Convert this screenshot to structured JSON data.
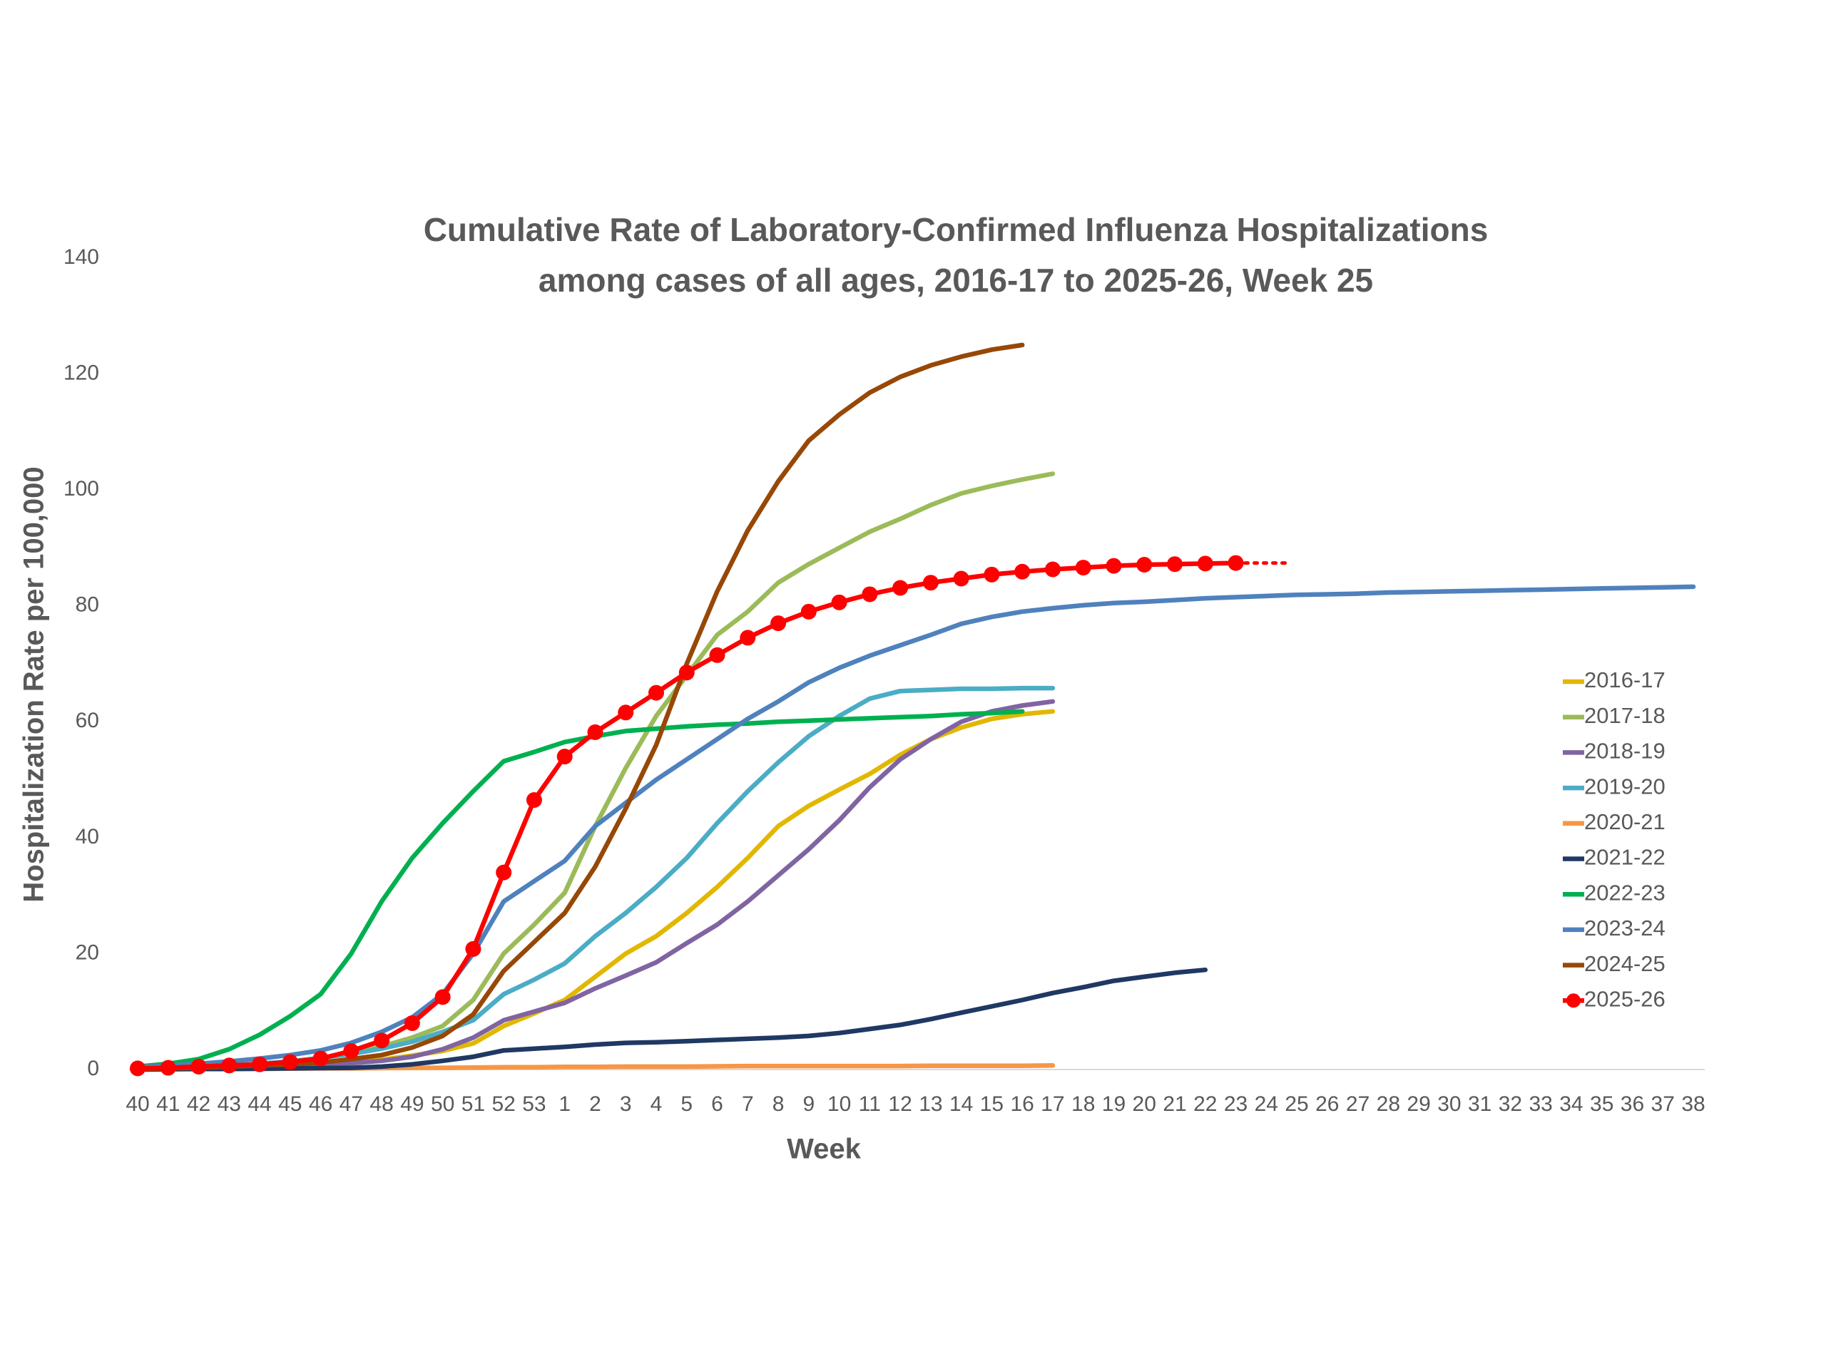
{
  "chart_data": {
    "type": "line",
    "title": [
      "Cumulative Rate of Laboratory-Confirmed Influenza Hospitalizations",
      "among cases of all ages, 2016-17 to 2025-26, Week 25"
    ],
    "x_label": "Week",
    "y_label": "Hospitalization Rate per 100,000",
    "categories": [
      "40",
      "41",
      "42",
      "43",
      "44",
      "45",
      "46",
      "47",
      "48",
      "49",
      "50",
      "51",
      "52",
      "53",
      "1",
      "2",
      "3",
      "4",
      "5",
      "6",
      "7",
      "8",
      "9",
      "10",
      "11",
      "12",
      "13",
      "14",
      "15",
      "16",
      "17",
      "18",
      "19",
      "20",
      "21",
      "22",
      "23",
      "24",
      "25",
      "26",
      "27",
      "28",
      "29",
      "30",
      "31",
      "32",
      "33",
      "34",
      "35",
      "36",
      "37",
      "38"
    ],
    "ylim": [
      0,
      140
    ],
    "yticks": [
      0,
      20,
      40,
      60,
      80,
      100,
      120,
      140
    ],
    "grid": false,
    "legend": "right",
    "series": [
      {
        "name": "2016-17",
        "color": "#e2b700",
        "values": [
          0.1,
          0.2,
          0.3,
          0.4,
          0.5,
          0.7,
          0.9,
          1.2,
          1.7,
          2.4,
          3.2,
          4.5,
          7.5,
          9.7,
          12,
          16,
          20,
          23,
          27,
          31.5,
          36.5,
          42,
          45.5,
          48.3,
          51,
          54.3,
          57,
          59,
          60.5,
          61.3,
          61.8,
          null,
          null,
          null,
          null,
          null,
          null,
          null,
          null,
          null,
          null,
          null,
          null,
          null,
          null,
          null,
          null,
          null,
          null,
          null,
          null,
          null
        ]
      },
      {
        "name": "2017-18",
        "color": "#9bbb59",
        "values": [
          0.2,
          0.3,
          0.5,
          0.7,
          1,
          1.4,
          2,
          2.8,
          4,
          5.5,
          7.5,
          12,
          20,
          25,
          30.5,
          42,
          52,
          61,
          68,
          75,
          79,
          84,
          87.2,
          90,
          92.8,
          95,
          97.4,
          99.4,
          100.7,
          101.8,
          102.8,
          null,
          null,
          null,
          null,
          null,
          null,
          null,
          null,
          null,
          null,
          null,
          null,
          null,
          null,
          null,
          null,
          null,
          null,
          null,
          null,
          null
        ]
      },
      {
        "name": "2018-19",
        "color": "#8064a2",
        "values": [
          0.1,
          0.2,
          0.3,
          0.4,
          0.5,
          0.6,
          0.8,
          1.1,
          1.5,
          2.2,
          3.5,
          5.5,
          8.5,
          10,
          11.5,
          14,
          16.2,
          18.5,
          21.8,
          25,
          29,
          33.5,
          38,
          43,
          48.7,
          53.5,
          57,
          60,
          61.8,
          62.8,
          63.5,
          null,
          null,
          null,
          null,
          null,
          null,
          null,
          null,
          null,
          null,
          null,
          null,
          null,
          null,
          null,
          null,
          null,
          null,
          null,
          null,
          null
        ]
      },
      {
        "name": "2019-20",
        "color": "#4bacc6",
        "values": [
          0.2,
          0.3,
          0.5,
          0.7,
          1,
          1.4,
          2,
          2.7,
          3.6,
          4.8,
          6.5,
          8.5,
          13,
          15.5,
          18.3,
          23,
          27,
          31.5,
          36.5,
          42.5,
          48,
          53,
          57.5,
          61,
          64,
          65.3,
          65.5,
          65.7,
          65.7,
          65.8,
          65.8,
          null,
          null,
          null,
          null,
          null,
          null,
          null,
          null,
          null,
          null,
          null,
          null,
          null,
          null,
          null,
          null,
          null,
          null,
          null,
          null,
          null
        ]
      },
      {
        "name": "2020-21",
        "color": "#f79646",
        "values": [
          0,
          0.05,
          0.1,
          0.1,
          0.1,
          0.15,
          0.2,
          0.2,
          0.25,
          0.3,
          0.3,
          0.35,
          0.4,
          0.4,
          0.45,
          0.45,
          0.5,
          0.5,
          0.5,
          0.55,
          0.6,
          0.6,
          0.6,
          0.6,
          0.6,
          0.6,
          0.65,
          0.65,
          0.65,
          0.65,
          0.7,
          null,
          null,
          null,
          null,
          null,
          null,
          null,
          null,
          null,
          null,
          null,
          null,
          null,
          null,
          null,
          null,
          null,
          null,
          null,
          null,
          null
        ]
      },
      {
        "name": "2021-22",
        "color": "#1f3864",
        "values": [
          0,
          0.05,
          0.1,
          0.1,
          0.15,
          0.2,
          0.25,
          0.3,
          0.5,
          0.9,
          1.5,
          2.2,
          3.3,
          3.6,
          3.9,
          4.3,
          4.6,
          4.7,
          4.9,
          5.1,
          5.3,
          5.5,
          5.8,
          6.3,
          7,
          7.7,
          8.7,
          9.8,
          10.9,
          12,
          13.2,
          14.2,
          15.3,
          16,
          16.7,
          17.2,
          null,
          null,
          null,
          null,
          null,
          null,
          null,
          null,
          null,
          null,
          null,
          null,
          null,
          null,
          null,
          null
        ]
      },
      {
        "name": "2022-23",
        "color": "#00b050",
        "values": [
          0.5,
          1,
          1.8,
          3.5,
          6,
          9.2,
          13,
          20,
          29,
          36.5,
          42.5,
          48,
          53.2,
          54.8,
          56.5,
          57.5,
          58.4,
          58.8,
          59.2,
          59.5,
          59.7,
          60,
          60.2,
          60.4,
          60.6,
          60.8,
          61,
          61.3,
          61.5,
          61.8,
          null,
          null,
          null,
          null,
          null,
          null,
          null,
          null,
          null,
          null,
          null,
          null,
          null,
          null,
          null,
          null,
          null,
          null,
          null,
          null,
          null,
          null
        ]
      },
      {
        "name": "2023-24",
        "color": "#4f81bd",
        "values": [
          0.4,
          0.7,
          1,
          1.4,
          1.9,
          2.5,
          3.3,
          4.6,
          6.5,
          9,
          13,
          20,
          29,
          32.5,
          36,
          42,
          46,
          50,
          53.5,
          57,
          60.5,
          63.5,
          66.8,
          69.3,
          71.4,
          73.2,
          75,
          76.9,
          78.1,
          79,
          79.6,
          80.1,
          80.5,
          80.7,
          81,
          81.3,
          81.5,
          81.7,
          81.9,
          82,
          82.1,
          82.3,
          82.4,
          82.5,
          82.6,
          82.7,
          82.8,
          82.9,
          83,
          83.1,
          83.2,
          83.3
        ]
      },
      {
        "name": "2024-25",
        "color": "#974806",
        "values": [
          0.1,
          0.2,
          0.3,
          0.5,
          0.7,
          0.9,
          1.2,
          1.8,
          2.5,
          3.8,
          5.8,
          9.5,
          17,
          22,
          27,
          35,
          45,
          56,
          70,
          82.5,
          93,
          101.5,
          108.5,
          113,
          116.8,
          119.5,
          121.5,
          123,
          124.2,
          125,
          null,
          null,
          null,
          null,
          null,
          null,
          null,
          null,
          null,
          null,
          null,
          null,
          null,
          null,
          null,
          null,
          null,
          null,
          null,
          null,
          null,
          null
        ]
      },
      {
        "name": "2025-26",
        "color": "#ff0000",
        "markers": true,
        "values": [
          0.2,
          0.3,
          0.5,
          0.7,
          0.9,
          1.3,
          1.9,
          3.2,
          5,
          8,
          12.5,
          20.8,
          34,
          46.5,
          54,
          58.2,
          61.6,
          65,
          68.5,
          71.5,
          74.5,
          77,
          79,
          80.6,
          82,
          83.1,
          84,
          84.7,
          85.4,
          85.9,
          86.3,
          86.6,
          86.9,
          87.1,
          87.2,
          87.3,
          87.4,
          null,
          null,
          null,
          null,
          null,
          null,
          null,
          null,
          null,
          null,
          null,
          null,
          null,
          null,
          null
        ]
      }
    ]
  }
}
